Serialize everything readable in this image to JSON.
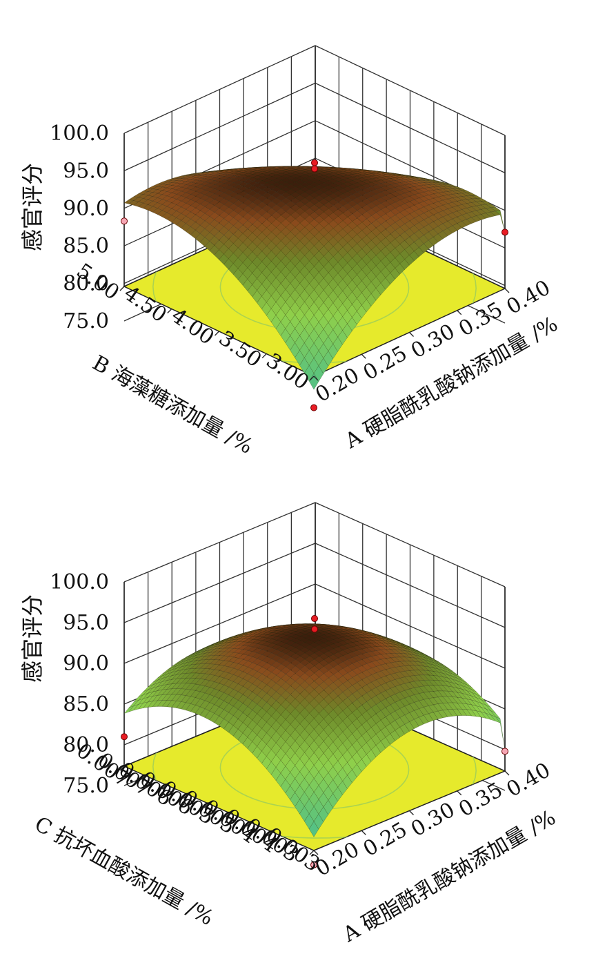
{
  "colors": {
    "floor": "#e6ea2c",
    "contour_inner": "#f07a20",
    "contour_outer": "#9ccd5a",
    "surface_low": "#4fc08a",
    "surface_mid": "#a7c93a",
    "surface_high": "#8a4a1c",
    "design_point": "#e81c24",
    "design_point_light": "#f5a6b4"
  },
  "chart_data": [
    {
      "type": "surface",
      "zlabel": "感官评分",
      "xlabel": "A 硬脂酰乳酸钠添加量 /%",
      "ylabel": "B 海藻糖添加量 /%",
      "x_ticks": [
        "0.20",
        "0.25",
        "0.30",
        "0.35",
        "0.40"
      ],
      "y_ticks": [
        "5.00",
        "4.50",
        "4.00",
        "3.50",
        "3.00"
      ],
      "z_ticks": [
        "100.0",
        "95.0",
        "90.0",
        "85.0",
        "80.0",
        "75.0"
      ],
      "xlim": [
        0.2,
        0.4
      ],
      "ylim": [
        3.0,
        5.0
      ],
      "zlim": [
        75.0,
        100.0
      ],
      "surface": {
        "peak_x": 0.3,
        "peak_y": 4.0,
        "peak_z": 93.6
      },
      "corners": {
        "x_low_y_low": 75.4,
        "x_low_y_high": 88.3,
        "x_high_y_low": 87.1,
        "x_high_y_high": 75.0
      },
      "design_points": [
        {
          "x": 0.3,
          "y": 4.0,
          "z": 96.2
        },
        {
          "x": 0.3,
          "y": 4.0,
          "z": 95.4
        },
        {
          "x": 0.2,
          "y": 5.0,
          "z": 88.3
        },
        {
          "x": 0.4,
          "y": 3.0,
          "z": 87.1
        },
        {
          "x": 0.2,
          "y": 3.0,
          "z": 75.4
        }
      ]
    },
    {
      "type": "surface",
      "zlabel": "感官评分",
      "xlabel": "A 硬脂酰乳酸钠添加量 /%",
      "ylabel": "C 抗坏血酸添加量 /%",
      "x_ticks": [
        "0.20",
        "0.25",
        "0.30",
        "0.35",
        "0.40"
      ],
      "y_ticks": [
        "0.007",
        "0.007",
        "0.006",
        "0.006",
        "0.005",
        "0.005",
        "0.004",
        "0.004",
        "0.003",
        "0.003"
      ],
      "z_ticks": [
        "100.0",
        "95.0",
        "90.0",
        "85.0",
        "80.0",
        "75.0"
      ],
      "xlim": [
        0.2,
        0.4
      ],
      "ylim": [
        0.003,
        0.007
      ],
      "zlim": [
        75.0,
        100.0
      ],
      "surface": {
        "peak_x": 0.3,
        "peak_y": 0.005,
        "peak_z": 93.4
      },
      "corners": {
        "x_low_y_low": 76.0,
        "x_low_y_high": 80.8,
        "x_high_y_low": 80.0,
        "x_high_y_high": 76.0
      },
      "design_points": [
        {
          "x": 0.3,
          "y": 0.005,
          "z": 95.8
        },
        {
          "x": 0.3,
          "y": 0.005,
          "z": 94.5
        },
        {
          "x": 0.2,
          "y": 0.007,
          "z": 81.0
        },
        {
          "x": 0.4,
          "y": 0.003,
          "z": 79.8
        },
        {
          "x": 0.2,
          "y": 0.003,
          "z": 75.6
        }
      ]
    }
  ]
}
